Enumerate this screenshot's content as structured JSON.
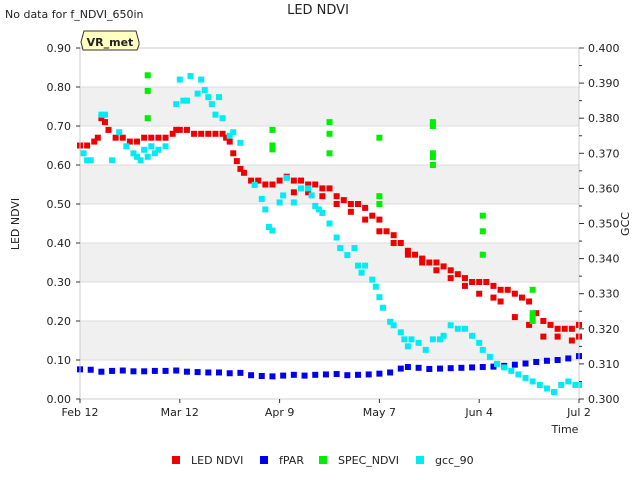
{
  "chart_data": {
    "type": "scatter",
    "title": "LED NDVI",
    "note": "No data for f_NDVI_650in",
    "site_label": "VR_met",
    "xlabel": "Time",
    "ylabel": "LED NDVI",
    "y2label": "GCC",
    "xlim": [
      0,
      140
    ],
    "ylim": [
      0,
      0.9
    ],
    "y2lim": [
      0.3,
      0.4
    ],
    "x_ticks": [
      {
        "value": 0,
        "label": "Feb 12"
      },
      {
        "value": 28,
        "label": "Mar 12"
      },
      {
        "value": 56,
        "label": "Apr 9"
      },
      {
        "value": 84,
        "label": "May 7"
      },
      {
        "value": 112,
        "label": "Jun 4"
      },
      {
        "value": 140,
        "label": "Jul 2"
      }
    ],
    "y_ticks": [
      {
        "value": 0.0,
        "label": "0.00"
      },
      {
        "value": 0.1,
        "label": "0.10"
      },
      {
        "value": 0.2,
        "label": "0.20"
      },
      {
        "value": 0.3,
        "label": "0.30"
      },
      {
        "value": 0.4,
        "label": "0.40"
      },
      {
        "value": 0.5,
        "label": "0.50"
      },
      {
        "value": 0.6,
        "label": "0.60"
      },
      {
        "value": 0.7,
        "label": "0.70"
      },
      {
        "value": 0.8,
        "label": "0.80"
      },
      {
        "value": 0.9,
        "label": "0.90"
      }
    ],
    "y2_ticks": [
      {
        "value": 0.3,
        "label": "0.300"
      },
      {
        "value": 0.31,
        "label": "0.310"
      },
      {
        "value": 0.32,
        "label": "0.320"
      },
      {
        "value": 0.33,
        "label": "0.330"
      },
      {
        "value": 0.34,
        "label": "0.340"
      },
      {
        "value": 0.35,
        "label": "0.350"
      },
      {
        "value": 0.36,
        "label": "0.360"
      },
      {
        "value": 0.37,
        "label": "0.370"
      },
      {
        "value": 0.38,
        "label": "0.380"
      },
      {
        "value": 0.39,
        "label": "0.390"
      },
      {
        "value": 0.4,
        "label": "0.400"
      }
    ],
    "band_color": "#f0f0f0",
    "grid": true,
    "legend_position": "bottom",
    "series": [
      {
        "name": "LED NDVI",
        "color": "#ee0000",
        "axis": "left",
        "marker": "square",
        "x": [
          0,
          2,
          4,
          5,
          6,
          7,
          8,
          10,
          12,
          14,
          16,
          18,
          20,
          22,
          24,
          26,
          27,
          28,
          30,
          32,
          34,
          36,
          38,
          40,
          41,
          42,
          43,
          44,
          45,
          46,
          48,
          50,
          52,
          54,
          56,
          58,
          60,
          62,
          64,
          66,
          68,
          70,
          72,
          74,
          76,
          78,
          80,
          82,
          84,
          86,
          88,
          90,
          92,
          94,
          96,
          98,
          100,
          102,
          104,
          106,
          108,
          110,
          112,
          114,
          116,
          118,
          120,
          122,
          124,
          126,
          128,
          130,
          132,
          134,
          136,
          138,
          140
        ],
        "y": [
          0.65,
          0.65,
          0.66,
          0.67,
          0.72,
          0.71,
          0.69,
          0.67,
          0.67,
          0.66,
          0.66,
          0.67,
          0.67,
          0.67,
          0.67,
          0.68,
          0.69,
          0.69,
          0.69,
          0.68,
          0.68,
          0.68,
          0.68,
          0.68,
          0.67,
          0.66,
          0.63,
          0.61,
          0.59,
          0.58,
          0.56,
          0.56,
          0.55,
          0.55,
          0.56,
          0.57,
          0.56,
          0.56,
          0.55,
          0.55,
          0.54,
          0.54,
          0.52,
          0.51,
          0.5,
          0.5,
          0.49,
          0.47,
          0.46,
          0.43,
          0.42,
          0.4,
          0.38,
          0.37,
          0.36,
          0.35,
          0.35,
          0.34,
          0.33,
          0.32,
          0.31,
          0.3,
          0.3,
          0.3,
          0.29,
          0.28,
          0.28,
          0.27,
          0.26,
          0.25,
          0.22,
          0.2,
          0.19,
          0.18,
          0.18,
          0.18,
          0.19
        ]
      },
      {
        "name": "LED NDVI (secondary)",
        "color": "#ee0000",
        "axis": "left",
        "marker": "square",
        "legend": false,
        "x": [
          60,
          64,
          68,
          72,
          76,
          80,
          84,
          88,
          92,
          96,
          100,
          104,
          108,
          112,
          116,
          118,
          122,
          126,
          130,
          134,
          138,
          140
        ],
        "y": [
          0.53,
          0.53,
          0.52,
          0.5,
          0.48,
          0.46,
          0.43,
          0.4,
          0.37,
          0.35,
          0.33,
          0.31,
          0.29,
          0.27,
          0.26,
          0.25,
          0.21,
          0.19,
          0.16,
          0.16,
          0.15,
          0.16
        ]
      },
      {
        "name": "fPAR",
        "color": "#0000ee",
        "axis": "left",
        "marker": "square",
        "x": [
          0,
          3,
          6,
          9,
          12,
          15,
          18,
          21,
          24,
          27,
          30,
          33,
          36,
          39,
          42,
          45,
          48,
          51,
          54,
          57,
          60,
          63,
          66,
          69,
          72,
          75,
          78,
          81,
          84,
          87,
          90,
          92,
          95,
          98,
          101,
          104,
          107,
          110,
          113,
          116,
          119,
          122,
          125,
          128,
          131,
          134,
          137,
          140
        ],
        "y": [
          0.076,
          0.075,
          0.07,
          0.072,
          0.073,
          0.071,
          0.071,
          0.072,
          0.072,
          0.073,
          0.07,
          0.069,
          0.068,
          0.068,
          0.066,
          0.067,
          0.061,
          0.059,
          0.058,
          0.06,
          0.062,
          0.06,
          0.062,
          0.063,
          0.064,
          0.061,
          0.062,
          0.063,
          0.065,
          0.068,
          0.078,
          0.082,
          0.08,
          0.077,
          0.078,
          0.079,
          0.08,
          0.081,
          0.082,
          0.083,
          0.085,
          0.088,
          0.091,
          0.095,
          0.098,
          0.1,
          0.104,
          0.11
        ]
      },
      {
        "name": "SPEC_NDVI",
        "color": "#00ee00",
        "axis": "left",
        "marker": "square",
        "x": [
          19,
          19,
          19,
          54,
          54,
          54,
          70,
          70,
          70,
          84,
          84,
          84,
          99,
          99,
          99,
          99,
          99,
          113,
          113,
          113,
          127,
          127,
          127,
          127
        ],
        "y": [
          0.83,
          0.79,
          0.72,
          0.69,
          0.65,
          0.64,
          0.71,
          0.68,
          0.63,
          0.67,
          0.52,
          0.5,
          0.71,
          0.7,
          0.63,
          0.62,
          0.6,
          0.47,
          0.43,
          0.37,
          0.28,
          0.22,
          0.21,
          0.2
        ]
      },
      {
        "name": "gcc_90",
        "color": "#00ecf4",
        "axis": "right",
        "marker": "square",
        "x": [
          1,
          2,
          3,
          6,
          7,
          9,
          11,
          13,
          15,
          16,
          17,
          18,
          19,
          20,
          21,
          22,
          24,
          27,
          28,
          29,
          30,
          31,
          33,
          34,
          35,
          36,
          37,
          38,
          39,
          40,
          42,
          43,
          45,
          49,
          51,
          52,
          53,
          54,
          56,
          57,
          58,
          60,
          62,
          64,
          65,
          66,
          67,
          68,
          70,
          72,
          73,
          75,
          77,
          78,
          79,
          80,
          82,
          83,
          84,
          85,
          87,
          88,
          90,
          91,
          92,
          93,
          95,
          97,
          99,
          101,
          102,
          104,
          106,
          108,
          110,
          112,
          113,
          115,
          117,
          119,
          121,
          123,
          125,
          127,
          129,
          131,
          133,
          135,
          137,
          139,
          140
        ],
        "y": [
          0.37,
          0.368,
          0.368,
          0.381,
          0.381,
          0.368,
          0.376,
          0.372,
          0.37,
          0.369,
          0.368,
          0.371,
          0.369,
          0.372,
          0.37,
          0.371,
          0.372,
          0.384,
          0.391,
          0.385,
          0.385,
          0.392,
          0.387,
          0.391,
          0.388,
          0.386,
          0.384,
          0.381,
          0.386,
          0.38,
          0.375,
          0.376,
          0.373,
          0.361,
          0.357,
          0.354,
          0.349,
          0.348,
          0.356,
          0.358,
          0.363,
          0.356,
          0.36,
          0.36,
          0.358,
          0.355,
          0.354,
          0.353,
          0.35,
          0.346,
          0.343,
          0.341,
          0.343,
          0.338,
          0.336,
          0.338,
          0.334,
          0.332,
          0.329,
          0.326,
          0.322,
          0.321,
          0.319,
          0.317,
          0.315,
          0.317,
          0.316,
          0.314,
          0.317,
          0.317,
          0.318,
          0.321,
          0.32,
          0.32,
          0.318,
          0.316,
          0.314,
          0.312,
          0.31,
          0.309,
          0.308,
          0.307,
          0.306,
          0.305,
          0.304,
          0.303,
          0.302,
          0.304,
          0.305,
          0.304,
          0.304
        ]
      }
    ]
  }
}
